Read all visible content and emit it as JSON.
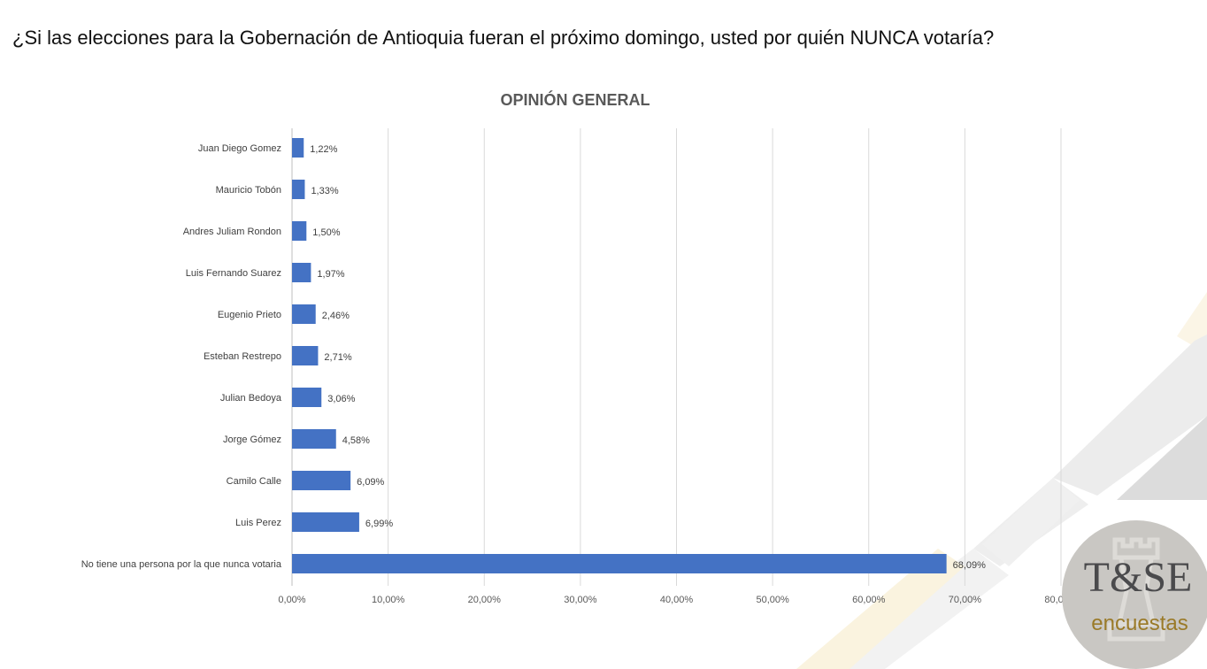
{
  "question": "¿Si las elecciones para la Gobernación de Antioquia fueran el próximo domingo, usted por quién NUNCA votaría?",
  "logo": {
    "text_main": "T&SE",
    "text_sub": "encuestas"
  },
  "chart_data": {
    "type": "bar",
    "orientation": "horizontal",
    "title": "OPINIÓN GENERAL",
    "categories": [
      "Juan Diego Gomez",
      "Mauricio Tobón",
      "Andres Juliam Rondon",
      "Luis Fernando Suarez",
      "Eugenio Prieto",
      "Esteban Restrepo",
      "Julian Bedoya",
      "Jorge Gómez",
      "Camilo Calle",
      "Luis Perez",
      "No tiene una persona por la que nunca votaria"
    ],
    "values": [
      1.22,
      1.33,
      1.5,
      1.97,
      2.46,
      2.71,
      3.06,
      4.58,
      6.09,
      6.99,
      68.09
    ],
    "data_labels": [
      "1,22%",
      "1,33%",
      "1,50%",
      "1,97%",
      "2,46%",
      "2,71%",
      "3,06%",
      "4,58%",
      "6,09%",
      "6,99%",
      "68,09%"
    ],
    "xlim": [
      0,
      80
    ],
    "x_ticks": [
      "0,00%",
      "10,00%",
      "20,00%",
      "30,00%",
      "40,00%",
      "50,00%",
      "60,00%",
      "70,00%",
      "80,00%"
    ],
    "grid": true,
    "bar_color": "#4472C4"
  }
}
